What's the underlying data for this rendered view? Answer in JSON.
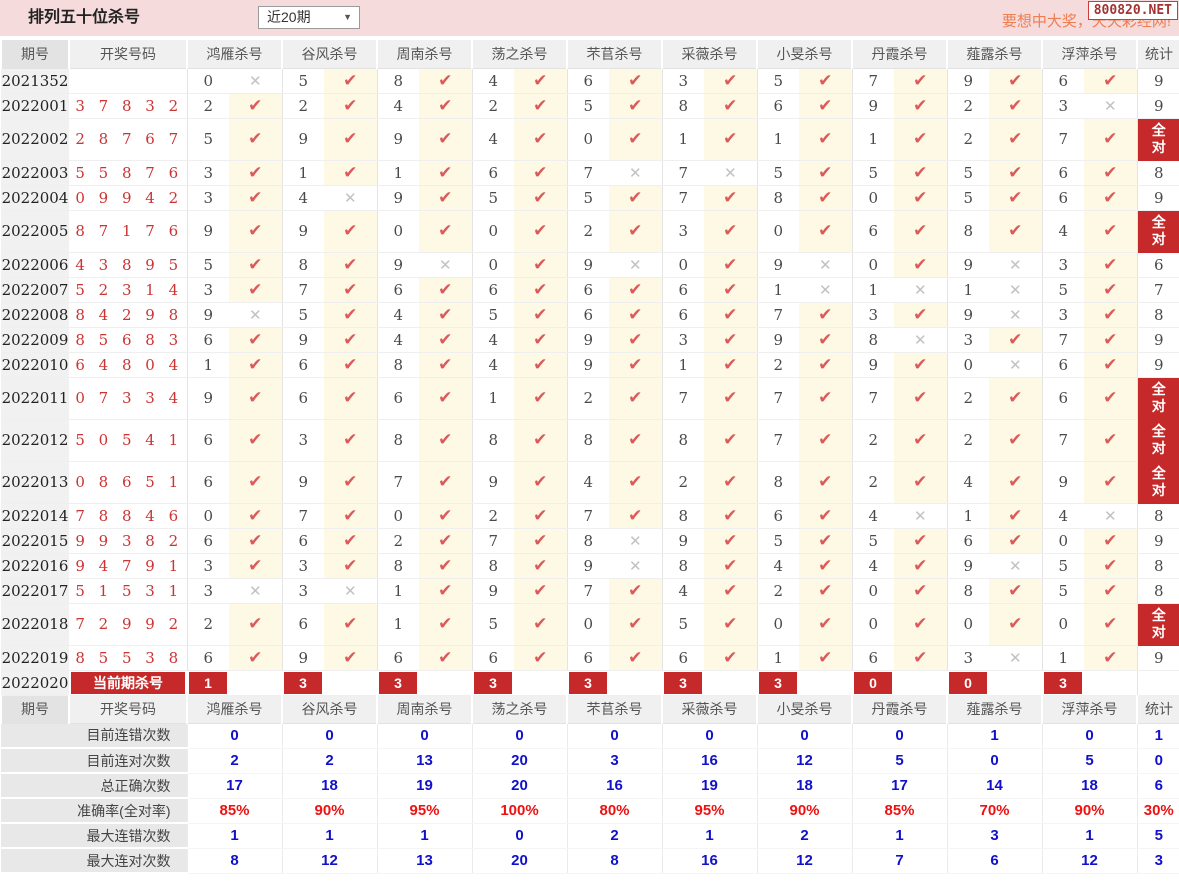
{
  "header": {
    "title": "排列五十位杀号",
    "range_select": "近20期",
    "marquee": "要想中大奖，天天彩经网!",
    "badge": "800820.NET"
  },
  "colors": {
    "topbar_pink": "#f5dbdb",
    "accent_red": "#c52929",
    "check_red": "#dc5a5a",
    "cross_gray": "#c2c2c2",
    "hit_cell_yellow": "#fdf9e4",
    "stat_blue": "#1111cc",
    "stat_red": "#ee1111",
    "winning_number_red": "#cc3333"
  },
  "table": {
    "col_period": "期号",
    "col_numbers": "开奖号码",
    "experts": [
      "鸿雁杀号",
      "谷风杀号",
      "周南杀号",
      "荡之杀号",
      "芣苢杀号",
      "采薇杀号",
      "小旻杀号",
      "丹霞杀号",
      "薤露杀号",
      "浮萍杀号"
    ],
    "col_total": "统计",
    "full_label": "全对",
    "rows": [
      {
        "period": "2021352",
        "numbers": "",
        "kills": [
          [
            "0",
            0
          ],
          [
            "5",
            1
          ],
          [
            "8",
            1
          ],
          [
            "4",
            1
          ],
          [
            "6",
            1
          ],
          [
            "3",
            1
          ],
          [
            "5",
            1
          ],
          [
            "7",
            1
          ],
          [
            "9",
            1
          ],
          [
            "6",
            1
          ]
        ],
        "total": "9"
      },
      {
        "period": "2022001",
        "numbers": "3 7 8 3 2",
        "kills": [
          [
            "2",
            1
          ],
          [
            "2",
            1
          ],
          [
            "4",
            1
          ],
          [
            "2",
            1
          ],
          [
            "5",
            1
          ],
          [
            "8",
            1
          ],
          [
            "6",
            1
          ],
          [
            "9",
            1
          ],
          [
            "2",
            1
          ],
          [
            "3",
            0
          ]
        ],
        "total": "9"
      },
      {
        "period": "2022002",
        "numbers": "2 8 7 6 7",
        "kills": [
          [
            "5",
            1
          ],
          [
            "9",
            1
          ],
          [
            "9",
            1
          ],
          [
            "4",
            1
          ],
          [
            "0",
            1
          ],
          [
            "1",
            1
          ],
          [
            "1",
            1
          ],
          [
            "1",
            1
          ],
          [
            "2",
            1
          ],
          [
            "7",
            1
          ]
        ],
        "total": "全对"
      },
      {
        "period": "2022003",
        "numbers": "5 5 8 7 6",
        "kills": [
          [
            "3",
            1
          ],
          [
            "1",
            1
          ],
          [
            "1",
            1
          ],
          [
            "6",
            1
          ],
          [
            "7",
            0
          ],
          [
            "7",
            0
          ],
          [
            "5",
            1
          ],
          [
            "5",
            1
          ],
          [
            "5",
            1
          ],
          [
            "6",
            1
          ]
        ],
        "total": "8"
      },
      {
        "period": "2022004",
        "numbers": "0 9 9 4 2",
        "kills": [
          [
            "3",
            1
          ],
          [
            "4",
            0
          ],
          [
            "9",
            1
          ],
          [
            "5",
            1
          ],
          [
            "5",
            1
          ],
          [
            "7",
            1
          ],
          [
            "8",
            1
          ],
          [
            "0",
            1
          ],
          [
            "5",
            1
          ],
          [
            "6",
            1
          ]
        ],
        "total": "9"
      },
      {
        "period": "2022005",
        "numbers": "8 7 1 7 6",
        "kills": [
          [
            "9",
            1
          ],
          [
            "9",
            1
          ],
          [
            "0",
            1
          ],
          [
            "0",
            1
          ],
          [
            "2",
            1
          ],
          [
            "3",
            1
          ],
          [
            "0",
            1
          ],
          [
            "6",
            1
          ],
          [
            "8",
            1
          ],
          [
            "4",
            1
          ]
        ],
        "total": "全对"
      },
      {
        "period": "2022006",
        "numbers": "4 3 8 9 5",
        "kills": [
          [
            "5",
            1
          ],
          [
            "8",
            1
          ],
          [
            "9",
            0
          ],
          [
            "0",
            1
          ],
          [
            "9",
            0
          ],
          [
            "0",
            1
          ],
          [
            "9",
            0
          ],
          [
            "0",
            1
          ],
          [
            "9",
            0
          ],
          [
            "3",
            1
          ]
        ],
        "total": "6"
      },
      {
        "period": "2022007",
        "numbers": "5 2 3 1 4",
        "kills": [
          [
            "3",
            1
          ],
          [
            "7",
            1
          ],
          [
            "6",
            1
          ],
          [
            "6",
            1
          ],
          [
            "6",
            1
          ],
          [
            "6",
            1
          ],
          [
            "1",
            0
          ],
          [
            "1",
            0
          ],
          [
            "1",
            0
          ],
          [
            "5",
            1
          ]
        ],
        "total": "7"
      },
      {
        "period": "2022008",
        "numbers": "8 4 2 9 8",
        "kills": [
          [
            "9",
            0
          ],
          [
            "5",
            1
          ],
          [
            "4",
            1
          ],
          [
            "5",
            1
          ],
          [
            "6",
            1
          ],
          [
            "6",
            1
          ],
          [
            "7",
            1
          ],
          [
            "3",
            1
          ],
          [
            "9",
            0
          ],
          [
            "3",
            1
          ]
        ],
        "total": "8"
      },
      {
        "period": "2022009",
        "numbers": "8 5 6 8 3",
        "kills": [
          [
            "6",
            1
          ],
          [
            "9",
            1
          ],
          [
            "4",
            1
          ],
          [
            "4",
            1
          ],
          [
            "9",
            1
          ],
          [
            "3",
            1
          ],
          [
            "9",
            1
          ],
          [
            "8",
            0
          ],
          [
            "3",
            1
          ],
          [
            "7",
            1
          ]
        ],
        "total": "9"
      },
      {
        "period": "2022010",
        "numbers": "6 4 8 0 4",
        "kills": [
          [
            "1",
            1
          ],
          [
            "6",
            1
          ],
          [
            "8",
            1
          ],
          [
            "4",
            1
          ],
          [
            "9",
            1
          ],
          [
            "1",
            1
          ],
          [
            "2",
            1
          ],
          [
            "9",
            1
          ],
          [
            "0",
            0
          ],
          [
            "6",
            1
          ]
        ],
        "total": "9"
      },
      {
        "period": "2022011",
        "numbers": "0 7 3 3 4",
        "kills": [
          [
            "9",
            1
          ],
          [
            "6",
            1
          ],
          [
            "6",
            1
          ],
          [
            "1",
            1
          ],
          [
            "2",
            1
          ],
          [
            "7",
            1
          ],
          [
            "7",
            1
          ],
          [
            "7",
            1
          ],
          [
            "2",
            1
          ],
          [
            "6",
            1
          ]
        ],
        "total": "全对"
      },
      {
        "period": "2022012",
        "numbers": "5 0 5 4 1",
        "kills": [
          [
            "6",
            1
          ],
          [
            "3",
            1
          ],
          [
            "8",
            1
          ],
          [
            "8",
            1
          ],
          [
            "8",
            1
          ],
          [
            "8",
            1
          ],
          [
            "7",
            1
          ],
          [
            "2",
            1
          ],
          [
            "2",
            1
          ],
          [
            "7",
            1
          ]
        ],
        "total": "全对"
      },
      {
        "period": "2022013",
        "numbers": "0 8 6 5 1",
        "kills": [
          [
            "6",
            1
          ],
          [
            "9",
            1
          ],
          [
            "7",
            1
          ],
          [
            "9",
            1
          ],
          [
            "4",
            1
          ],
          [
            "2",
            1
          ],
          [
            "8",
            1
          ],
          [
            "2",
            1
          ],
          [
            "4",
            1
          ],
          [
            "9",
            1
          ]
        ],
        "total": "全对"
      },
      {
        "period": "2022014",
        "numbers": "7 8 8 4 6",
        "kills": [
          [
            "0",
            1
          ],
          [
            "7",
            1
          ],
          [
            "0",
            1
          ],
          [
            "2",
            1
          ],
          [
            "7",
            1
          ],
          [
            "8",
            1
          ],
          [
            "6",
            1
          ],
          [
            "4",
            0
          ],
          [
            "1",
            1
          ],
          [
            "4",
            0
          ]
        ],
        "total": "8"
      },
      {
        "period": "2022015",
        "numbers": "9 9 3 8 2",
        "kills": [
          [
            "6",
            1
          ],
          [
            "6",
            1
          ],
          [
            "2",
            1
          ],
          [
            "7",
            1
          ],
          [
            "8",
            0
          ],
          [
            "9",
            1
          ],
          [
            "5",
            1
          ],
          [
            "5",
            1
          ],
          [
            "6",
            1
          ],
          [
            "0",
            1
          ]
        ],
        "total": "9"
      },
      {
        "period": "2022016",
        "numbers": "9 4 7 9 1",
        "kills": [
          [
            "3",
            1
          ],
          [
            "3",
            1
          ],
          [
            "8",
            1
          ],
          [
            "8",
            1
          ],
          [
            "9",
            0
          ],
          [
            "8",
            1
          ],
          [
            "4",
            1
          ],
          [
            "4",
            1
          ],
          [
            "9",
            0
          ],
          [
            "5",
            1
          ]
        ],
        "total": "8"
      },
      {
        "period": "2022017",
        "numbers": "5 1 5 3 1",
        "kills": [
          [
            "3",
            0
          ],
          [
            "3",
            0
          ],
          [
            "1",
            1
          ],
          [
            "9",
            1
          ],
          [
            "7",
            1
          ],
          [
            "4",
            1
          ],
          [
            "2",
            1
          ],
          [
            "0",
            1
          ],
          [
            "8",
            1
          ],
          [
            "5",
            1
          ]
        ],
        "total": "8"
      },
      {
        "period": "2022018",
        "numbers": "7 2 9 9 2",
        "kills": [
          [
            "2",
            1
          ],
          [
            "6",
            1
          ],
          [
            "1",
            1
          ],
          [
            "5",
            1
          ],
          [
            "0",
            1
          ],
          [
            "5",
            1
          ],
          [
            "0",
            1
          ],
          [
            "0",
            1
          ],
          [
            "0",
            1
          ],
          [
            "0",
            1
          ]
        ],
        "total": "全对"
      },
      {
        "period": "2022019",
        "numbers": "8 5 5 3 8",
        "kills": [
          [
            "6",
            1
          ],
          [
            "9",
            1
          ],
          [
            "6",
            1
          ],
          [
            "6",
            1
          ],
          [
            "6",
            1
          ],
          [
            "6",
            1
          ],
          [
            "1",
            1
          ],
          [
            "6",
            1
          ],
          [
            "3",
            0
          ],
          [
            "1",
            1
          ]
        ],
        "total": "9"
      }
    ],
    "current": {
      "period": "2022020",
      "label": "当前期杀号",
      "kills": [
        "1",
        "3",
        "3",
        "3",
        "3",
        "3",
        "3",
        "0",
        "0",
        "3"
      ]
    },
    "stats": [
      {
        "label": "目前连错次数",
        "values": [
          "0",
          "0",
          "0",
          "0",
          "0",
          "0",
          "0",
          "0",
          "1",
          "0"
        ],
        "total": "1",
        "style": "blue"
      },
      {
        "label": "目前连对次数",
        "values": [
          "2",
          "2",
          "13",
          "20",
          "3",
          "16",
          "12",
          "5",
          "0",
          "5"
        ],
        "total": "0",
        "style": "blue"
      },
      {
        "label": "总正确次数",
        "values": [
          "17",
          "18",
          "19",
          "20",
          "16",
          "19",
          "18",
          "17",
          "14",
          "18"
        ],
        "total": "6",
        "style": "blue"
      },
      {
        "label": "准确率(全对率)",
        "values": [
          "85%",
          "90%",
          "95%",
          "100%",
          "80%",
          "95%",
          "90%",
          "85%",
          "70%",
          "90%"
        ],
        "total": "30%",
        "style": "red"
      },
      {
        "label": "最大连错次数",
        "values": [
          "1",
          "1",
          "1",
          "0",
          "2",
          "1",
          "2",
          "1",
          "3",
          "1"
        ],
        "total": "5",
        "style": "blue"
      },
      {
        "label": "最大连对次数",
        "values": [
          "8",
          "12",
          "13",
          "20",
          "8",
          "16",
          "12",
          "7",
          "6",
          "12"
        ],
        "total": "3",
        "style": "blue"
      }
    ]
  }
}
